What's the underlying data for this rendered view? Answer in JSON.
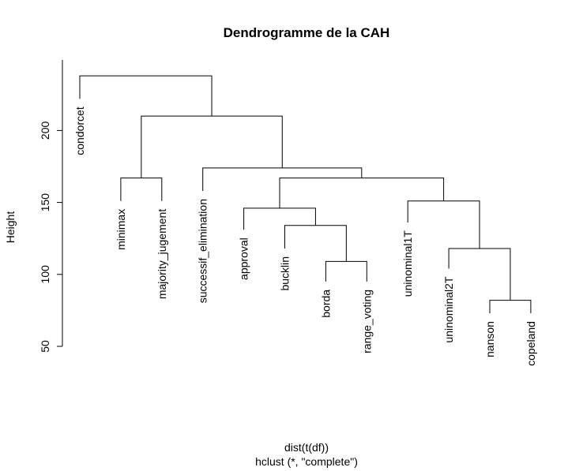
{
  "chart_data": {
    "type": "dendrogram",
    "title": "Dendrogramme de la CAH",
    "ylabel": "Height",
    "xlabel": "dist(t(df))",
    "subtitle": "hclust (*, \"complete\")",
    "yticks": [
      50,
      100,
      150,
      200
    ],
    "ylim": [
      50,
      240
    ],
    "leaves": [
      {
        "label": "condorcet",
        "height": 222
      },
      {
        "label": "minimax",
        "height": 151
      },
      {
        "label": "majority_jugement",
        "height": 151
      },
      {
        "label": "successif_elimination",
        "height": 158
      },
      {
        "label": "approval",
        "height": 131
      },
      {
        "label": "bucklin",
        "height": 118
      },
      {
        "label": "borda",
        "height": 95
      },
      {
        "label": "range_voting",
        "height": 95
      },
      {
        "label": "uninominal1T",
        "height": 136
      },
      {
        "label": "uninominal2T",
        "height": 104
      },
      {
        "label": "nanson",
        "height": 73
      },
      {
        "label": "copeland",
        "height": 73
      }
    ],
    "merges": [
      {
        "left": 10,
        "right": 11,
        "height": 82
      },
      {
        "left": 6,
        "right": 7,
        "height": 109
      },
      {
        "left": 9,
        "right": "m0",
        "height": 118
      },
      {
        "left": 5,
        "right": "m1",
        "height": 134
      },
      {
        "left": 4,
        "right": "m3",
        "height": 146
      },
      {
        "left": 8,
        "right": "m2",
        "height": 151
      },
      {
        "left": "m4",
        "right": "m5",
        "height": 167
      },
      {
        "left": 1,
        "right": 2,
        "height": 167
      },
      {
        "left": 3,
        "right": "m6",
        "height": 174
      },
      {
        "left": "m7",
        "right": "m8",
        "height": 210
      },
      {
        "left": 0,
        "right": "m9",
        "height": 238
      }
    ]
  }
}
